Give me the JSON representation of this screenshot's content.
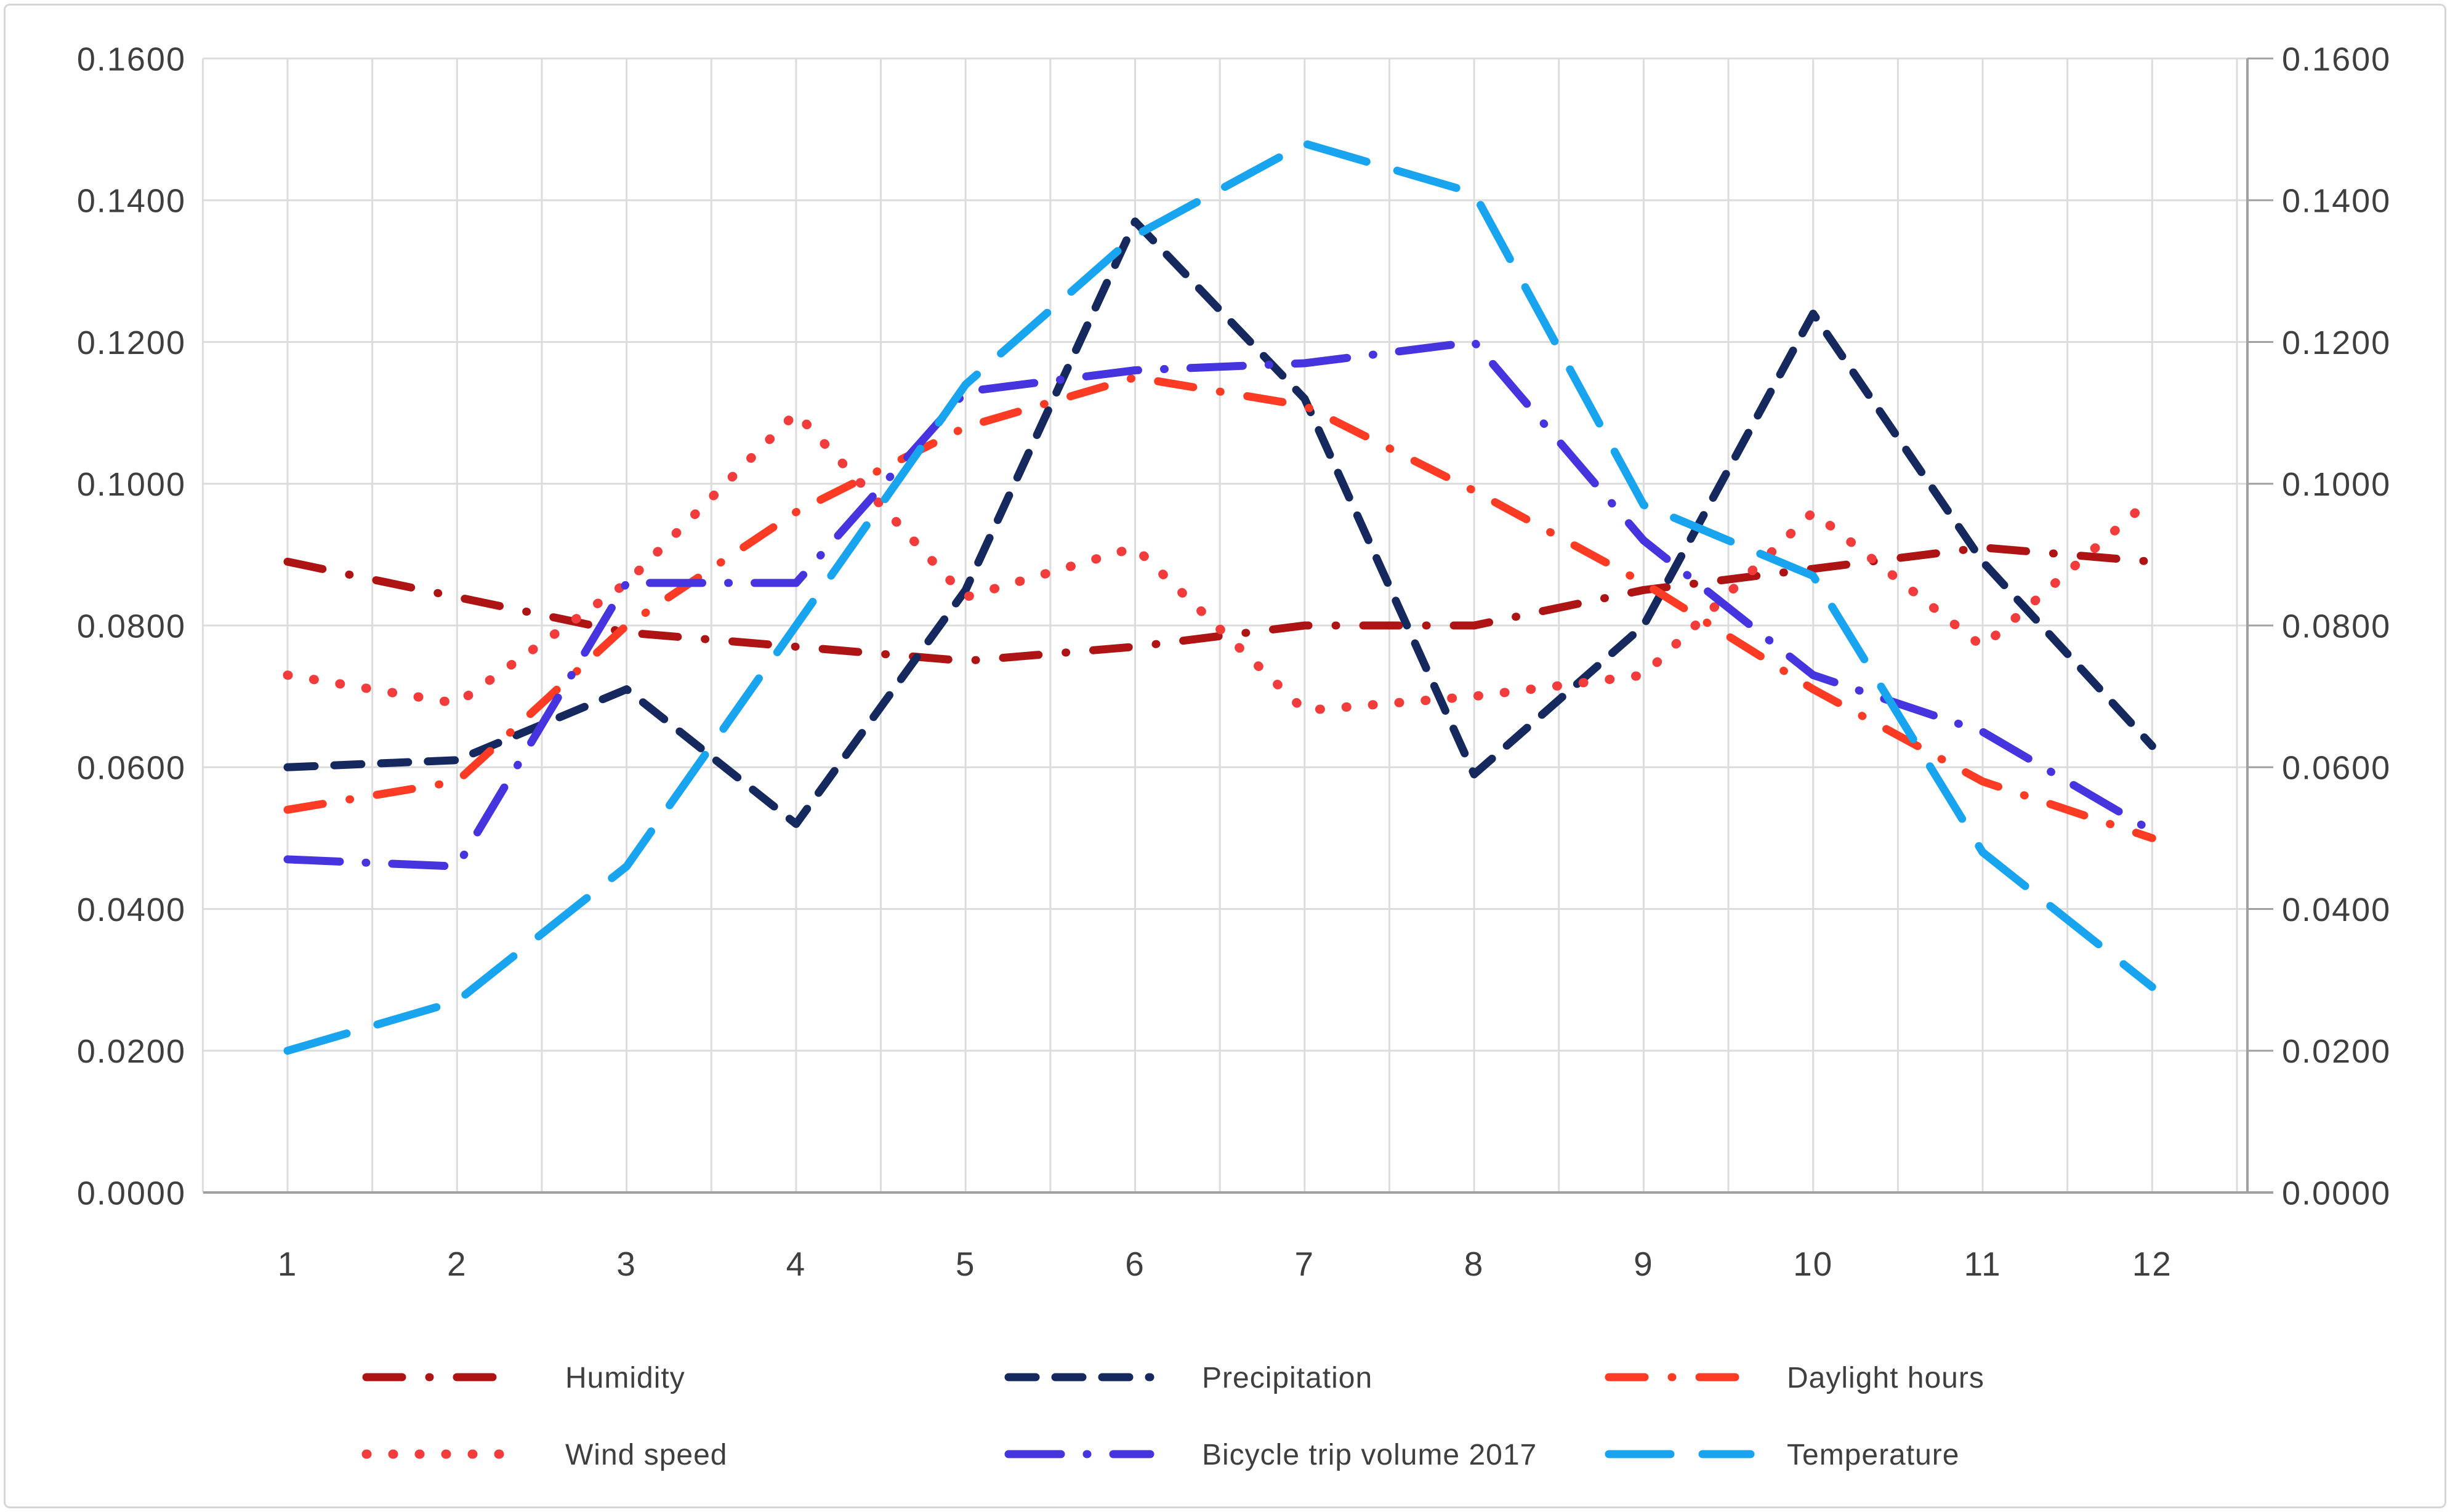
{
  "chart_data": {
    "type": "line",
    "title": "",
    "xlabel": "",
    "ylabel": "",
    "x": [
      1,
      2,
      3,
      4,
      5,
      6,
      7,
      8,
      9,
      10,
      11,
      12
    ],
    "x_tick_labels": [
      "1",
      "2",
      "3",
      "4",
      "5",
      "6",
      "7",
      "8",
      "9",
      "10",
      "11",
      "12"
    ],
    "y_ticks": [
      0,
      0.02,
      0.04,
      0.06,
      0.08,
      0.1,
      0.12,
      0.14,
      0.16
    ],
    "y_tick_labels": [
      "0.0000",
      "0.0200",
      "0.0400",
      "0.0600",
      "0.0800",
      "0.1000",
      "0.1200",
      "0.1400",
      "0.1600"
    ],
    "ylim": [
      0,
      0.16
    ],
    "xlim": [
      0.5,
      12.6
    ],
    "dual_y_axis": true,
    "grid": {
      "horizontal_step": 0.02,
      "vertical_step": 0.5,
      "grid_on": true
    },
    "legend_position": "bottom",
    "series": [
      {
        "name": "Humidity",
        "color": "#ae1414",
        "pattern": "dash-dot",
        "values": [
          0.089,
          0.084,
          0.079,
          0.077,
          0.075,
          0.077,
          0.08,
          0.08,
          0.085,
          0.088,
          0.091,
          0.089
        ]
      },
      {
        "name": "Precipitation",
        "color": "#16295f",
        "pattern": "dash",
        "values": [
          0.06,
          0.061,
          0.071,
          0.052,
          0.085,
          0.137,
          0.112,
          0.059,
          0.08,
          0.124,
          0.089,
          0.063
        ]
      },
      {
        "name": "Daylight hours",
        "color": "#fb3b24",
        "pattern": "dash-dot",
        "values": [
          0.054,
          0.058,
          0.08,
          0.096,
          0.108,
          0.115,
          0.111,
          0.099,
          0.086,
          0.071,
          0.058,
          0.05
        ]
      },
      {
        "name": "Wind speed",
        "color": "#f23b3b",
        "pattern": "dot",
        "values": [
          0.073,
          0.069,
          0.086,
          0.11,
          0.084,
          0.091,
          0.068,
          0.07,
          0.073,
          0.096,
          0.077,
          0.098
        ]
      },
      {
        "name": "Bicycle trip volume 2017",
        "color": "#4634df",
        "pattern": "long-dash-dot",
        "values": [
          0.047,
          0.046,
          0.086,
          0.086,
          0.113,
          0.116,
          0.117,
          0.12,
          0.092,
          0.073,
          0.065,
          0.051
        ]
      },
      {
        "name": "Temperature",
        "color": "#18a4ee",
        "pattern": "long-dash",
        "values": [
          0.02,
          0.027,
          0.046,
          0.08,
          0.114,
          0.135,
          0.148,
          0.141,
          0.097,
          0.087,
          0.048,
          0.029
        ]
      }
    ],
    "legend_columns": [
      [
        "Humidity",
        "Wind speed"
      ],
      [
        "Precipitation",
        "Bicycle trip volume 2017"
      ],
      [
        "Daylight hours",
        "Temperature"
      ]
    ],
    "colors": {
      "gridline": "#dcdcdc",
      "axis_line": "#a0a0a0",
      "tick_text": "#3f3f3f",
      "background": "#ffffff",
      "frame_border": "#d6d6d6"
    }
  }
}
